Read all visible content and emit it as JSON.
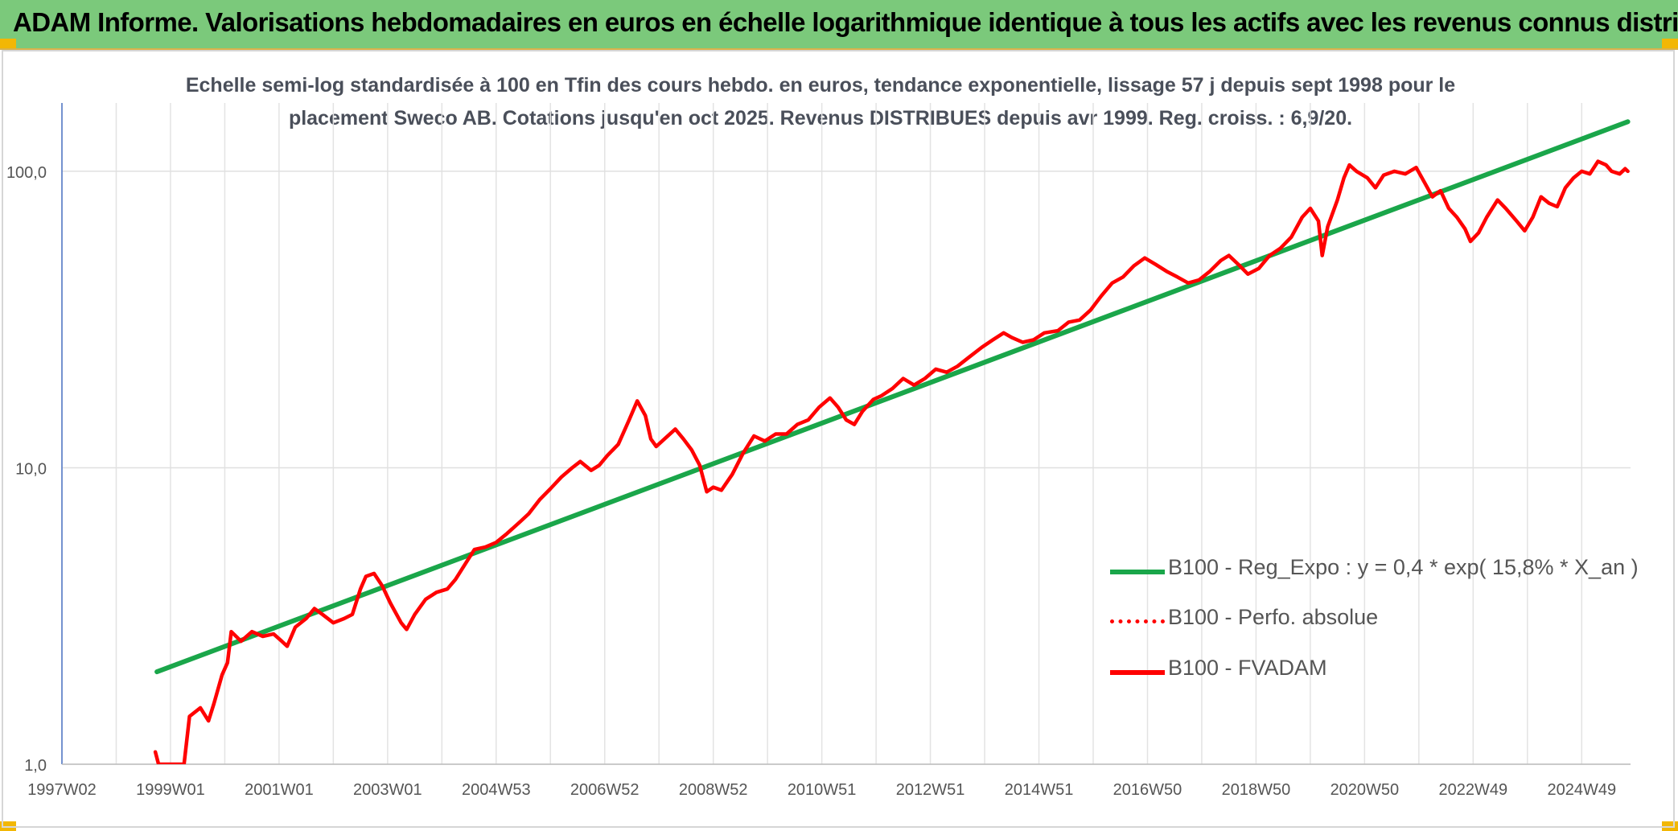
{
  "header": {
    "title": "ADAM Informe. Valorisations hebdomadaires en euros en échelle logarithmique identique à tous les actifs avec les revenus connus distribués"
  },
  "chart_data": {
    "type": "line",
    "title_line1": "Echelle semi-log standardisée à 100 en Tfin des cours hebdo. en euros, tendance exponentielle, lissage 57 j depuis sept 1998 pour le",
    "title_line2": "placement Sweco AB. Cotations jusqu'en oct 2025. Revenus DISTRIBUES depuis avr 1999. Reg. croiss. : 6,9/20.",
    "y_scale": "log",
    "ylim": [
      1,
      170
    ],
    "y_ticks": [
      {
        "value": 1,
        "label": "1,0"
      },
      {
        "value": 10,
        "label": "10,0"
      },
      {
        "value": 100,
        "label": "100,0"
      }
    ],
    "xlim": [
      1997.0,
      2025.9
    ],
    "x_ticks": [
      {
        "value": 1997.0,
        "label": "1997W02"
      },
      {
        "value": 1999.0,
        "label": "1999W01"
      },
      {
        "value": 2001.0,
        "label": "2001W01"
      },
      {
        "value": 2003.0,
        "label": "2003W01"
      },
      {
        "value": 2005.0,
        "label": "2004W53"
      },
      {
        "value": 2007.0,
        "label": "2006W52"
      },
      {
        "value": 2009.0,
        "label": "2008W52"
      },
      {
        "value": 2011.0,
        "label": "2010W51"
      },
      {
        "value": 2013.0,
        "label": "2012W51"
      },
      {
        "value": 2015.0,
        "label": "2014W51"
      },
      {
        "value": 2017.0,
        "label": "2016W50"
      },
      {
        "value": 2019.0,
        "label": "2018W50"
      },
      {
        "value": 2021.0,
        "label": "2020W50"
      },
      {
        "value": 2023.0,
        "label": "2022W49"
      },
      {
        "value": 2025.0,
        "label": "2024W49"
      }
    ],
    "grid": true,
    "legend_position": "bottom-right",
    "series": [
      {
        "name": "B100 - Reg_Expo : y = 0,4 * exp( 15,8% *  X_an )",
        "color": "#1aa64a",
        "style": "solid",
        "points": [
          [
            1998.75,
            2.05
          ],
          [
            2025.85,
            147
          ]
        ]
      },
      {
        "name": "B100 - Perfo. absolue",
        "color": "#ff0000",
        "style": "dotted",
        "points": []
      },
      {
        "name": "B100 - FVADAM",
        "color": "#ff0000",
        "style": "solid",
        "points": [
          [
            1998.72,
            1.1
          ],
          [
            1998.78,
            1.0
          ],
          [
            1999.25,
            1.0
          ],
          [
            1999.35,
            1.45
          ],
          [
            1999.55,
            1.55
          ],
          [
            1999.7,
            1.4
          ],
          [
            1999.8,
            1.6
          ],
          [
            1999.95,
            2.0
          ],
          [
            2000.05,
            2.2
          ],
          [
            2000.12,
            2.8
          ],
          [
            2000.3,
            2.6
          ],
          [
            2000.5,
            2.8
          ],
          [
            2000.7,
            2.7
          ],
          [
            2000.9,
            2.75
          ],
          [
            2001.05,
            2.6
          ],
          [
            2001.15,
            2.5
          ],
          [
            2001.3,
            2.9
          ],
          [
            2001.5,
            3.1
          ],
          [
            2001.65,
            3.35
          ],
          [
            2001.8,
            3.2
          ],
          [
            2002.0,
            3.0
          ],
          [
            2002.2,
            3.1
          ],
          [
            2002.35,
            3.2
          ],
          [
            2002.5,
            3.9
          ],
          [
            2002.6,
            4.3
          ],
          [
            2002.75,
            4.4
          ],
          [
            2002.9,
            4.0
          ],
          [
            2003.05,
            3.5
          ],
          [
            2003.25,
            3.0
          ],
          [
            2003.35,
            2.85
          ],
          [
            2003.5,
            3.2
          ],
          [
            2003.7,
            3.6
          ],
          [
            2003.9,
            3.8
          ],
          [
            2004.1,
            3.9
          ],
          [
            2004.25,
            4.2
          ],
          [
            2004.45,
            4.8
          ],
          [
            2004.6,
            5.3
          ],
          [
            2004.8,
            5.4
          ],
          [
            2005.0,
            5.6
          ],
          [
            2005.2,
            6.0
          ],
          [
            2005.45,
            6.6
          ],
          [
            2005.6,
            7.0
          ],
          [
            2005.8,
            7.8
          ],
          [
            2006.0,
            8.5
          ],
          [
            2006.2,
            9.3
          ],
          [
            2006.4,
            10.0
          ],
          [
            2006.55,
            10.5
          ],
          [
            2006.75,
            9.8
          ],
          [
            2006.9,
            10.2
          ],
          [
            2007.05,
            11.0
          ],
          [
            2007.25,
            12.0
          ],
          [
            2007.45,
            14.5
          ],
          [
            2007.6,
            16.8
          ],
          [
            2007.75,
            15.0
          ],
          [
            2007.85,
            12.5
          ],
          [
            2007.95,
            11.8
          ],
          [
            2008.1,
            12.5
          ],
          [
            2008.3,
            13.5
          ],
          [
            2008.45,
            12.5
          ],
          [
            2008.6,
            11.5
          ],
          [
            2008.75,
            10.2
          ],
          [
            2008.88,
            8.3
          ],
          [
            2009.0,
            8.6
          ],
          [
            2009.15,
            8.4
          ],
          [
            2009.35,
            9.5
          ],
          [
            2009.55,
            11.2
          ],
          [
            2009.75,
            12.8
          ],
          [
            2009.95,
            12.3
          ],
          [
            2010.15,
            13.0
          ],
          [
            2010.35,
            13.0
          ],
          [
            2010.55,
            14.0
          ],
          [
            2010.75,
            14.5
          ],
          [
            2010.95,
            16.0
          ],
          [
            2011.15,
            17.2
          ],
          [
            2011.3,
            16.0
          ],
          [
            2011.45,
            14.5
          ],
          [
            2011.6,
            14.0
          ],
          [
            2011.75,
            15.5
          ],
          [
            2011.95,
            17.0
          ],
          [
            2012.1,
            17.5
          ],
          [
            2012.3,
            18.5
          ],
          [
            2012.5,
            20.0
          ],
          [
            2012.7,
            19.0
          ],
          [
            2012.9,
            20.0
          ],
          [
            2013.1,
            21.5
          ],
          [
            2013.3,
            21.0
          ],
          [
            2013.5,
            22.0
          ],
          [
            2013.7,
            23.5
          ],
          [
            2013.95,
            25.5
          ],
          [
            2014.15,
            27.0
          ],
          [
            2014.35,
            28.5
          ],
          [
            2014.5,
            27.5
          ],
          [
            2014.7,
            26.5
          ],
          [
            2014.9,
            27.0
          ],
          [
            2015.1,
            28.5
          ],
          [
            2015.35,
            29.0
          ],
          [
            2015.55,
            31.0
          ],
          [
            2015.75,
            31.5
          ],
          [
            2015.95,
            34.0
          ],
          [
            2016.15,
            38.0
          ],
          [
            2016.35,
            42.0
          ],
          [
            2016.55,
            44.0
          ],
          [
            2016.75,
            48.0
          ],
          [
            2016.95,
            51.0
          ],
          [
            2017.15,
            48.5
          ],
          [
            2017.35,
            46.0
          ],
          [
            2017.55,
            44.0
          ],
          [
            2017.75,
            42.0
          ],
          [
            2017.95,
            43.0
          ],
          [
            2018.15,
            46.0
          ],
          [
            2018.35,
            50.0
          ],
          [
            2018.5,
            52.0
          ],
          [
            2018.7,
            48.0
          ],
          [
            2018.85,
            45.0
          ],
          [
            2019.05,
            47.0
          ],
          [
            2019.25,
            52.0
          ],
          [
            2019.45,
            55.0
          ],
          [
            2019.65,
            60.0
          ],
          [
            2019.85,
            70.0
          ],
          [
            2020.0,
            75.0
          ],
          [
            2020.15,
            68.0
          ],
          [
            2020.22,
            52.0
          ],
          [
            2020.32,
            65.0
          ],
          [
            2020.5,
            80.0
          ],
          [
            2020.62,
            95.0
          ],
          [
            2020.72,
            105.0
          ],
          [
            2020.85,
            100.0
          ],
          [
            2021.05,
            95.0
          ],
          [
            2021.2,
            88.0
          ],
          [
            2021.35,
            97.0
          ],
          [
            2021.55,
            100.0
          ],
          [
            2021.75,
            98.0
          ],
          [
            2021.95,
            103.0
          ],
          [
            2022.1,
            92.0
          ],
          [
            2022.25,
            82.0
          ],
          [
            2022.4,
            86.0
          ],
          [
            2022.55,
            75.0
          ],
          [
            2022.7,
            70.0
          ],
          [
            2022.85,
            64.0
          ],
          [
            2022.95,
            58.0
          ],
          [
            2023.1,
            62.0
          ],
          [
            2023.25,
            70.0
          ],
          [
            2023.45,
            80.0
          ],
          [
            2023.6,
            75.0
          ],
          [
            2023.8,
            68.0
          ],
          [
            2023.95,
            63.0
          ],
          [
            2024.1,
            70.0
          ],
          [
            2024.25,
            82.0
          ],
          [
            2024.4,
            78.0
          ],
          [
            2024.55,
            76.0
          ],
          [
            2024.7,
            88.0
          ],
          [
            2024.85,
            95.0
          ],
          [
            2025.0,
            100.0
          ],
          [
            2025.15,
            98.0
          ],
          [
            2025.3,
            108.0
          ],
          [
            2025.45,
            105.0
          ],
          [
            2025.55,
            100.0
          ],
          [
            2025.7,
            98.0
          ],
          [
            2025.8,
            102.0
          ],
          [
            2025.85,
            100.0
          ]
        ]
      }
    ]
  }
}
